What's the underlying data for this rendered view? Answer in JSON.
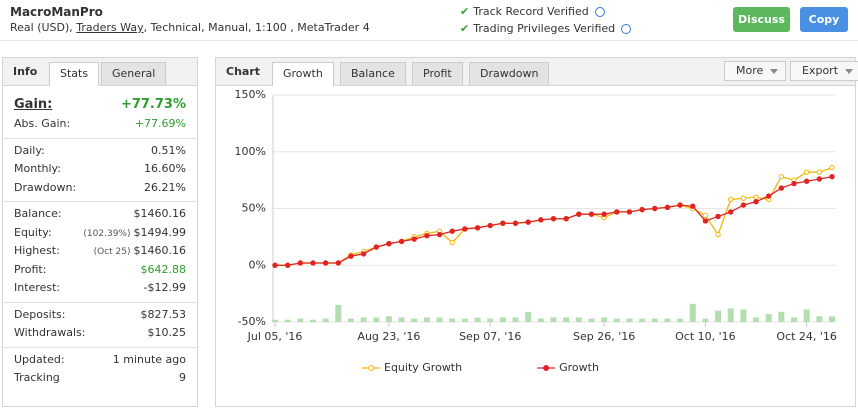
{
  "header": {
    "title": "MacroManPro",
    "account": "Real (USD),",
    "broker": "Traders Way",
    "details": ", Technical, Manual, 1:100 , MetaTrader 4"
  },
  "verified": [
    "Track Record Verified",
    "Trading Privileges Verified"
  ],
  "buttons": [
    "Discuss",
    "Copy"
  ],
  "info_panel": {
    "title": "Info",
    "tabs": [
      "Stats",
      "General"
    ],
    "groups": [
      [
        {
          "label": "Gain:",
          "value": "+77.73%",
          "color": "#2e9e2e",
          "big": true
        },
        {
          "label": "Abs. Gain:",
          "value": "+77.69%",
          "color": "#2e9e2e"
        }
      ],
      [
        {
          "label": "Daily:",
          "value": "0.51%"
        },
        {
          "label": "Monthly:",
          "value": "16.60%"
        },
        {
          "label": "Drawdown:",
          "value": "26.21%"
        }
      ],
      [
        {
          "label": "Balance:",
          "value": "$1460.16"
        },
        {
          "label": "Equity:",
          "note": "(102.39%)",
          "value": "$1494.99"
        },
        {
          "label": "Highest:",
          "note": "(Oct 25)",
          "value": "$1460.16"
        },
        {
          "label": "Profit:",
          "value": "$642.88",
          "color": "#2e9e2e"
        },
        {
          "label": "Interest:",
          "value": "-$12.99"
        }
      ],
      [
        {
          "label": "Deposits:",
          "value": "$827.53"
        },
        {
          "label": "Withdrawals:",
          "value": "$10.25"
        }
      ],
      [
        {
          "label": "Updated:",
          "value": "1 minute ago"
        },
        {
          "label": "Tracking",
          "value": "9"
        }
      ]
    ]
  },
  "chart_panel": {
    "title": "Chart",
    "tabs": [
      "Growth",
      "Balance",
      "Profit",
      "Drawdown"
    ],
    "menus": [
      "More",
      "Export"
    ]
  },
  "chart_data": {
    "type": "line",
    "categories": [
      "Jul 05, '16",
      null,
      null,
      null,
      null,
      null,
      null,
      null,
      null,
      "Aug 23, '16",
      null,
      null,
      null,
      null,
      null,
      null,
      null,
      "Sep 07, '16",
      null,
      null,
      null,
      null,
      null,
      null,
      null,
      null,
      "Sep 26, '16",
      null,
      null,
      null,
      null,
      null,
      null,
      null,
      "Oct 10, '16",
      null,
      null,
      null,
      null,
      null,
      null,
      null,
      "Oct 24, '16",
      null,
      null
    ],
    "series": [
      {
        "name": "Equity Growth",
        "color": "#f2b705",
        "values": [
          0,
          0,
          2,
          2,
          2,
          2,
          9,
          12,
          16,
          19,
          21,
          25,
          28,
          30,
          20,
          32,
          33,
          35,
          37,
          37,
          38,
          40,
          41,
          41,
          45,
          45,
          42,
          47,
          47,
          49,
          50,
          51,
          53,
          50,
          44,
          27,
          58,
          59,
          60,
          58,
          78,
          75,
          82,
          82,
          86
        ]
      },
      {
        "name": "Growth",
        "color": "#e02424",
        "values": [
          0,
          0,
          2,
          2,
          2,
          2,
          8,
          10,
          16,
          19,
          21,
          23,
          26,
          27,
          30,
          32,
          33,
          35,
          37,
          37,
          38,
          40,
          41,
          41,
          45,
          45,
          45,
          47,
          47,
          49,
          50,
          51,
          53,
          52,
          39,
          43,
          47,
          53,
          56,
          61,
          68,
          72,
          74,
          76,
          78
        ]
      }
    ],
    "bar_color": "#b3deaf",
    "bar_values": [
      -48,
      -48,
      -47,
      -48,
      -47,
      -35,
      -47,
      -46,
      -46,
      -45,
      -46,
      -47,
      -46,
      -46,
      -47,
      -47,
      -46,
      -47,
      -46,
      -46,
      -41,
      -47,
      -46,
      -46,
      -46,
      -47,
      -46,
      -47,
      -47,
      -47,
      -47,
      -47,
      -47,
      -34,
      -47,
      -40,
      -38,
      -39,
      -46,
      -43,
      -41,
      -46,
      -39,
      -45,
      -45
    ],
    "ylim": [
      -50,
      150
    ],
    "yticks": [
      {
        "value": -50,
        "label": "-50%"
      },
      {
        "value": 0,
        "label": "0%"
      },
      {
        "value": 50,
        "label": "50%"
      },
      {
        "value": 100,
        "label": "100%"
      },
      {
        "value": 150,
        "label": "150%"
      }
    ],
    "grid": true
  }
}
